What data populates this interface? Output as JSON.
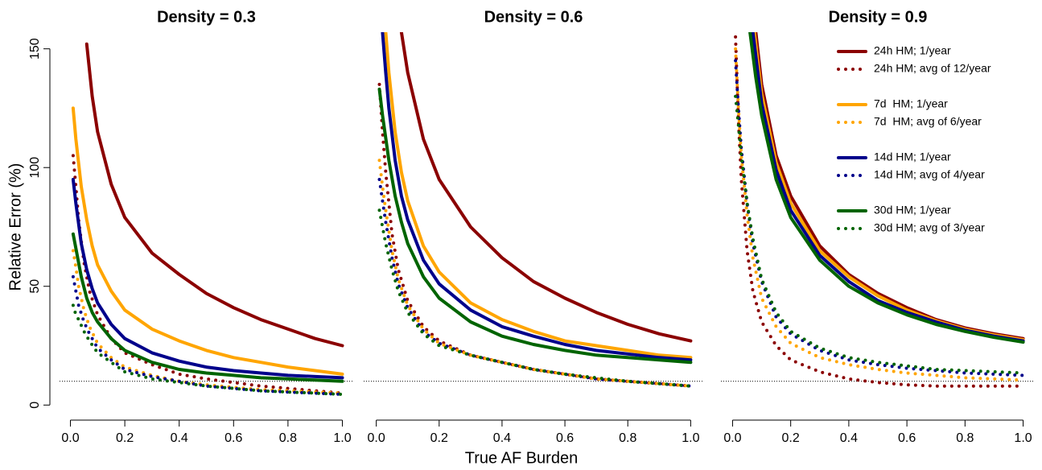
{
  "chart_data": [
    {
      "type": "line",
      "title": "Density = 0.3",
      "ylabel": "Relative Error (%)",
      "xlim": [
        -0.04,
        1.04
      ],
      "ylim": [
        -6,
        157
      ],
      "xticks": [
        {
          "value": 0,
          "label": "0.0"
        },
        {
          "value": 0.2,
          "label": "0.2"
        },
        {
          "value": 0.4,
          "label": "0.4"
        },
        {
          "value": 0.6,
          "label": "0.6"
        },
        {
          "value": 0.8,
          "label": "0.8"
        },
        {
          "value": 1,
          "label": "1.0"
        }
      ],
      "yticks": [
        0,
        50,
        100,
        150
      ],
      "hline": 10,
      "series": [
        {
          "name": "24h HM; 1/year",
          "color": "#8b0000",
          "style": "solid",
          "x": [
            0.06,
            0.08,
            0.1,
            0.15,
            0.2,
            0.3,
            0.4,
            0.5,
            0.6,
            0.7,
            0.8,
            0.9,
            1.0
          ],
          "values": [
            152,
            130,
            115,
            93,
            79,
            64,
            55,
            47,
            41,
            36,
            32,
            28,
            25
          ]
        },
        {
          "name": "24h HM; avg of 12/year",
          "color": "#8b0000",
          "style": "dotted",
          "x": [
            0.01,
            0.02,
            0.03,
            0.05,
            0.07,
            0.1,
            0.15,
            0.2,
            0.3,
            0.4,
            0.5,
            0.6,
            0.7,
            0.8,
            0.9,
            1.0
          ],
          "values": [
            105,
            92,
            78,
            60,
            48,
            38,
            28,
            22,
            17,
            13,
            11,
            9.5,
            8,
            7,
            6,
            5
          ]
        },
        {
          "name": "7d  HM; 1/year",
          "color": "#ffa500",
          "style": "solid",
          "x": [
            0.01,
            0.02,
            0.04,
            0.06,
            0.08,
            0.1,
            0.15,
            0.2,
            0.3,
            0.4,
            0.5,
            0.6,
            0.7,
            0.8,
            0.9,
            1.0
          ],
          "values": [
            125,
            112,
            92,
            78,
            67,
            59,
            48,
            40,
            32,
            27,
            23,
            20,
            18,
            16,
            14.5,
            13
          ]
        },
        {
          "name": "7d  HM; avg of 6/year",
          "color": "#ffa500",
          "style": "dotted",
          "x": [
            0.01,
            0.02,
            0.03,
            0.05,
            0.07,
            0.1,
            0.15,
            0.2,
            0.3,
            0.4,
            0.5,
            0.6,
            0.7,
            0.8,
            0.9,
            1.0
          ],
          "values": [
            65,
            58,
            50,
            40,
            33,
            26,
            20,
            16,
            12.5,
            10,
            8.5,
            7.5,
            6.5,
            6,
            5.5,
            5
          ]
        },
        {
          "name": "14d HM; 1/year",
          "color": "#00008b",
          "style": "solid",
          "x": [
            0.01,
            0.02,
            0.04,
            0.06,
            0.08,
            0.1,
            0.15,
            0.2,
            0.3,
            0.4,
            0.5,
            0.6,
            0.7,
            0.8,
            0.9,
            1.0
          ],
          "values": [
            95,
            85,
            68,
            57,
            49,
            43,
            34,
            28,
            22,
            18.5,
            16,
            14.5,
            13.5,
            12.5,
            12,
            11.5
          ]
        },
        {
          "name": "14d HM; avg of 4/year",
          "color": "#00008b",
          "style": "dotted",
          "x": [
            0.01,
            0.02,
            0.03,
            0.05,
            0.07,
            0.1,
            0.15,
            0.2,
            0.3,
            0.4,
            0.5,
            0.6,
            0.7,
            0.8,
            0.9,
            1.0
          ],
          "values": [
            54,
            48,
            42,
            35,
            30,
            24,
            19,
            15,
            12,
            10,
            8,
            7,
            6,
            5.5,
            5,
            4.5
          ]
        },
        {
          "name": "30d HM; 1/year",
          "color": "#006400",
          "style": "solid",
          "x": [
            0.01,
            0.02,
            0.04,
            0.06,
            0.08,
            0.1,
            0.15,
            0.2,
            0.3,
            0.4,
            0.5,
            0.6,
            0.7,
            0.8,
            0.9,
            1.0
          ],
          "values": [
            72,
            66,
            54,
            45,
            39,
            35,
            28,
            23,
            18,
            15,
            13.5,
            12.5,
            11.5,
            11,
            10.5,
            10
          ]
        },
        {
          "name": "30d HM; avg of 3/year",
          "color": "#006400",
          "style": "dotted",
          "x": [
            0.01,
            0.02,
            0.03,
            0.05,
            0.07,
            0.1,
            0.15,
            0.2,
            0.3,
            0.4,
            0.5,
            0.6,
            0.7,
            0.8,
            0.9,
            1.0
          ],
          "values": [
            42,
            38,
            36,
            31,
            27,
            22,
            18,
            14,
            11,
            9.5,
            8,
            7,
            6,
            5.5,
            5,
            4.5
          ]
        }
      ]
    },
    {
      "type": "line",
      "title": "Density = 0.6",
      "xlabel": "True AF Burden",
      "xlim": [
        -0.04,
        1.04
      ],
      "ylim": [
        -6,
        157
      ],
      "xticks": [
        {
          "value": 0,
          "label": "0.0"
        },
        {
          "value": 0.2,
          "label": "0.2"
        },
        {
          "value": 0.4,
          "label": "0.4"
        },
        {
          "value": 0.6,
          "label": "0.6"
        },
        {
          "value": 0.8,
          "label": "0.8"
        },
        {
          "value": 1,
          "label": "1.0"
        }
      ],
      "hline": 10,
      "series": [
        {
          "name": "24h HM; 1/year",
          "color": "#8b0000",
          "style": "solid",
          "x": [
            0.08,
            0.1,
            0.15,
            0.2,
            0.3,
            0.4,
            0.5,
            0.6,
            0.7,
            0.8,
            0.9,
            1.0
          ],
          "values": [
            157,
            140,
            112,
            95,
            75,
            62,
            52,
            45,
            39,
            34,
            30,
            27
          ]
        },
        {
          "name": "24h HM; avg of 12/year",
          "color": "#8b0000",
          "style": "dotted",
          "x": [
            0.01,
            0.02,
            0.03,
            0.05,
            0.07,
            0.1,
            0.15,
            0.2,
            0.3,
            0.4,
            0.5,
            0.6,
            0.7,
            0.8,
            0.9,
            1.0
          ],
          "values": [
            135,
            115,
            98,
            72,
            57,
            44,
            33,
            27,
            21,
            18,
            15,
            13,
            11,
            10,
            9,
            8
          ]
        },
        {
          "name": "7d  HM; 1/year",
          "color": "#ffa500",
          "style": "solid",
          "x": [
            0.03,
            0.04,
            0.06,
            0.08,
            0.1,
            0.15,
            0.2,
            0.3,
            0.4,
            0.5,
            0.6,
            0.7,
            0.8,
            0.9,
            1.0
          ],
          "values": [
            157,
            140,
            115,
            98,
            86,
            67,
            56,
            43,
            36,
            31,
            27,
            25,
            23,
            21,
            20
          ]
        },
        {
          "name": "7d  HM; avg of 6/year",
          "color": "#ffa500",
          "style": "dotted",
          "x": [
            0.01,
            0.02,
            0.03,
            0.05,
            0.07,
            0.1,
            0.15,
            0.2,
            0.3,
            0.4,
            0.5,
            0.6,
            0.7,
            0.8,
            0.9,
            1.0
          ],
          "values": [
            103,
            92,
            82,
            65,
            53,
            42,
            32,
            26,
            21,
            18,
            15,
            13,
            11,
            10,
            9,
            8
          ]
        },
        {
          "name": "14d HM; 1/year",
          "color": "#00008b",
          "style": "solid",
          "x": [
            0.02,
            0.03,
            0.04,
            0.06,
            0.08,
            0.1,
            0.15,
            0.2,
            0.3,
            0.4,
            0.5,
            0.6,
            0.7,
            0.8,
            0.9,
            1.0
          ],
          "values": [
            157,
            140,
            125,
            103,
            88,
            78,
            61,
            51,
            40,
            33,
            29,
            25.5,
            23,
            21.5,
            20,
            19
          ]
        },
        {
          "name": "14d HM; avg of 4/year",
          "color": "#00008b",
          "style": "dotted",
          "x": [
            0.01,
            0.02,
            0.03,
            0.05,
            0.07,
            0.1,
            0.15,
            0.2,
            0.3,
            0.4,
            0.5,
            0.6,
            0.7,
            0.8,
            0.9,
            1.0
          ],
          "values": [
            95,
            86,
            77,
            62,
            51,
            41,
            31,
            26,
            21,
            18,
            15,
            13,
            11,
            10,
            9,
            8
          ]
        },
        {
          "name": "30d HM; 1/year",
          "color": "#006400",
          "style": "solid",
          "x": [
            0.01,
            0.02,
            0.04,
            0.06,
            0.08,
            0.1,
            0.15,
            0.2,
            0.3,
            0.4,
            0.5,
            0.6,
            0.7,
            0.8,
            0.9,
            1.0
          ],
          "values": [
            133,
            122,
            103,
            88,
            77,
            68,
            54,
            45,
            35,
            29,
            25.5,
            23,
            21,
            20,
            19,
            18
          ]
        },
        {
          "name": "30d HM; avg of 3/year",
          "color": "#006400",
          "style": "dotted",
          "x": [
            0.01,
            0.02,
            0.03,
            0.05,
            0.07,
            0.1,
            0.15,
            0.2,
            0.3,
            0.4,
            0.5,
            0.6,
            0.7,
            0.8,
            0.9,
            1.0
          ],
          "values": [
            82,
            75,
            68,
            57,
            48,
            39,
            30,
            25,
            21,
            18,
            15,
            13,
            11.5,
            10,
            9,
            8
          ]
        }
      ]
    },
    {
      "type": "line",
      "title": "Density = 0.9",
      "legend": "topright",
      "xlim": [
        -0.04,
        1.04
      ],
      "ylim": [
        -6,
        157
      ],
      "xticks": [
        {
          "value": 0,
          "label": "0.0"
        },
        {
          "value": 0.2,
          "label": "0.2"
        },
        {
          "value": 0.4,
          "label": "0.4"
        },
        {
          "value": 0.6,
          "label": "0.6"
        },
        {
          "value": 0.8,
          "label": "0.8"
        },
        {
          "value": 1,
          "label": "1.0"
        }
      ],
      "hline": 10,
      "series": [
        {
          "name": "24h HM; 1/year",
          "color": "#8b0000",
          "style": "solid",
          "x": [
            0.08,
            0.1,
            0.15,
            0.2,
            0.3,
            0.4,
            0.5,
            0.6,
            0.7,
            0.8,
            0.9,
            1.0
          ],
          "values": [
            157,
            135,
            105,
            88,
            67,
            55,
            47,
            41,
            36,
            32.5,
            30,
            28
          ]
        },
        {
          "name": "24h HM; avg of 12/year",
          "color": "#8b0000",
          "style": "dotted",
          "x": [
            0.01,
            0.02,
            0.03,
            0.05,
            0.07,
            0.1,
            0.15,
            0.2,
            0.3,
            0.4,
            0.5,
            0.6,
            0.7,
            0.8,
            0.9,
            1.0
          ],
          "values": [
            155,
            120,
            95,
            65,
            48,
            35,
            25,
            19,
            14,
            11,
            9.5,
            8.5,
            8,
            8,
            8,
            8
          ]
        },
        {
          "name": "7d  HM; 1/year",
          "color": "#ffa500",
          "style": "solid",
          "x": [
            0.075,
            0.1,
            0.15,
            0.2,
            0.3,
            0.4,
            0.5,
            0.6,
            0.7,
            0.8,
            0.9,
            1.0
          ],
          "values": [
            157,
            131,
            102,
            85,
            65,
            54,
            46,
            40,
            35.5,
            32,
            29.5,
            27.5
          ]
        },
        {
          "name": "7d  HM; avg of 6/year",
          "color": "#ffa500",
          "style": "dotted",
          "x": [
            0.01,
            0.02,
            0.03,
            0.05,
            0.07,
            0.1,
            0.15,
            0.2,
            0.3,
            0.4,
            0.5,
            0.6,
            0.7,
            0.8,
            0.9,
            1.0
          ],
          "values": [
            150,
            125,
            105,
            80,
            62,
            45,
            33,
            26,
            20,
            17,
            15,
            13.5,
            12.5,
            11.5,
            11,
            10.5
          ]
        },
        {
          "name": "14d HM; 1/year",
          "color": "#00008b",
          "style": "solid",
          "x": [
            0.07,
            0.1,
            0.15,
            0.2,
            0.3,
            0.4,
            0.5,
            0.6,
            0.7,
            0.8,
            0.9,
            1.0
          ],
          "values": [
            157,
            127,
            99,
            82,
            63,
            52,
            44,
            39,
            35,
            31.5,
            29,
            27
          ]
        },
        {
          "name": "14d HM; avg of 4/year",
          "color": "#00008b",
          "style": "dotted",
          "x": [
            0.01,
            0.02,
            0.03,
            0.05,
            0.07,
            0.1,
            0.15,
            0.2,
            0.3,
            0.4,
            0.5,
            0.6,
            0.7,
            0.8,
            0.9,
            1.0
          ],
          "values": [
            145,
            125,
            108,
            85,
            68,
            52,
            37,
            30,
            23,
            19,
            17,
            15.5,
            14.5,
            13.5,
            13,
            12.5
          ]
        },
        {
          "name": "30d HM; 1/year",
          "color": "#006400",
          "style": "solid",
          "x": [
            0.06,
            0.08,
            0.1,
            0.15,
            0.2,
            0.3,
            0.4,
            0.5,
            0.6,
            0.7,
            0.8,
            0.9,
            1.0
          ],
          "values": [
            157,
            138,
            122,
            95,
            79,
            61,
            50,
            43,
            38,
            34,
            31,
            28.5,
            26.5
          ]
        },
        {
          "name": "30d HM; avg of 3/year",
          "color": "#006400",
          "style": "dotted",
          "x": [
            0.01,
            0.02,
            0.03,
            0.05,
            0.07,
            0.1,
            0.15,
            0.2,
            0.3,
            0.4,
            0.5,
            0.6,
            0.7,
            0.8,
            0.9,
            1.0
          ],
          "values": [
            130,
            118,
            105,
            85,
            70,
            53,
            39,
            31,
            24,
            20,
            18,
            16.5,
            15,
            14.5,
            14,
            13.5
          ]
        }
      ]
    }
  ]
}
